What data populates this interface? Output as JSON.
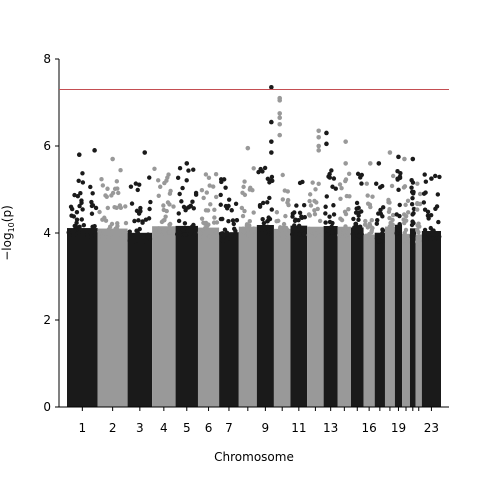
{
  "chart_data": {
    "type": "scatter",
    "title": "",
    "xlabel": "Chromosome",
    "ylabel": "−log",
    "ylabel_sub": "10",
    "ylabel_tail": "(p)",
    "ylim": [
      0,
      8
    ],
    "yticks": [
      0,
      2,
      4,
      6,
      8
    ],
    "threshold": 7.3,
    "threshold_color": "#c44e52",
    "colors": [
      "#1a1a1a",
      "#999999"
    ],
    "grid": false,
    "chromosomes": [
      {
        "chr": "1",
        "label": "1"
      },
      {
        "chr": "2",
        "label": "2"
      },
      {
        "chr": "3",
        "label": "3"
      },
      {
        "chr": "4",
        "label": "4"
      },
      {
        "chr": "5",
        "label": "5"
      },
      {
        "chr": "6",
        "label": "6"
      },
      {
        "chr": "7",
        "label": "7"
      },
      {
        "chr": "8",
        "label": ""
      },
      {
        "chr": "9",
        "label": "9"
      },
      {
        "chr": "10",
        "label": ""
      },
      {
        "chr": "11",
        "label": "11"
      },
      {
        "chr": "12",
        "label": ""
      },
      {
        "chr": "13",
        "label": "13"
      },
      {
        "chr": "14",
        "label": ""
      },
      {
        "chr": "15",
        "label": ""
      },
      {
        "chr": "16",
        "label": "16"
      },
      {
        "chr": "17",
        "label": ""
      },
      {
        "chr": "18",
        "label": ""
      },
      {
        "chr": "19",
        "label": "19"
      },
      {
        "chr": "20",
        "label": ""
      },
      {
        "chr": "21",
        "label": ""
      },
      {
        "chr": "22",
        "label": ""
      },
      {
        "chr": "23",
        "label": "23"
      }
    ],
    "top_points": [
      {
        "chr": "9",
        "frac": 0.85,
        "y": 7.35
      },
      {
        "chr": "10",
        "frac": 0.35,
        "y": 7.1
      },
      {
        "chr": "10",
        "frac": 0.35,
        "y": 7.05
      },
      {
        "chr": "10",
        "frac": 0.35,
        "y": 6.75
      },
      {
        "chr": "10",
        "frac": 0.35,
        "y": 6.65
      },
      {
        "chr": "10",
        "frac": 0.35,
        "y": 6.5
      },
      {
        "chr": "10",
        "frac": 0.35,
        "y": 6.25
      },
      {
        "chr": "9",
        "frac": 0.85,
        "y": 6.55
      },
      {
        "chr": "9",
        "frac": 0.85,
        "y": 6.1
      },
      {
        "chr": "9",
        "frac": 0.85,
        "y": 5.85
      },
      {
        "chr": "12",
        "frac": 0.7,
        "y": 6.35
      },
      {
        "chr": "12",
        "frac": 0.7,
        "y": 6.2
      },
      {
        "chr": "12",
        "frac": 0.7,
        "y": 6.0
      },
      {
        "chr": "12",
        "frac": 0.7,
        "y": 5.9
      },
      {
        "chr": "13",
        "frac": 0.2,
        "y": 6.3
      },
      {
        "chr": "13",
        "frac": 0.2,
        "y": 6.05
      },
      {
        "chr": "14",
        "frac": 0.6,
        "y": 6.1
      },
      {
        "chr": "14",
        "frac": 0.6,
        "y": 5.6
      },
      {
        "chr": "1",
        "frac": 0.4,
        "y": 5.8
      },
      {
        "chr": "1",
        "frac": 0.9,
        "y": 5.9
      },
      {
        "chr": "3",
        "frac": 0.7,
        "y": 5.85
      },
      {
        "chr": "8",
        "frac": 0.5,
        "y": 5.95
      },
      {
        "chr": "2",
        "frac": 0.5,
        "y": 5.7
      },
      {
        "chr": "16",
        "frac": 0.6,
        "y": 5.6
      },
      {
        "chr": "17",
        "frac": 0.4,
        "y": 5.6
      },
      {
        "chr": "19",
        "frac": 0.5,
        "y": 5.75
      },
      {
        "chr": "20",
        "frac": 0.3,
        "y": 5.7
      },
      {
        "chr": "21",
        "frac": 0.5,
        "y": 5.7
      },
      {
        "chr": "18",
        "frac": 0.5,
        "y": 5.85
      },
      {
        "chr": "5",
        "frac": 0.5,
        "y": 5.6
      },
      {
        "chr": "23",
        "frac": 0.5,
        "y": 5.25
      }
    ]
  }
}
